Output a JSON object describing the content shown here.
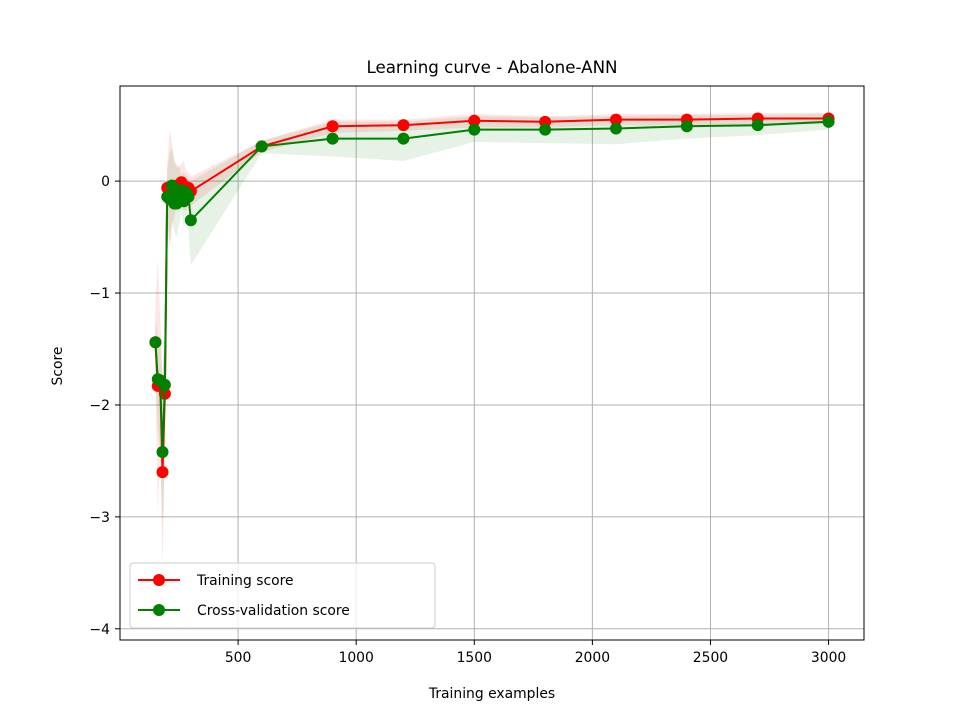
{
  "chart_data": {
    "type": "line",
    "title": "Learning curve - Abalone-ANN",
    "xlabel": "Training examples",
    "ylabel": "Score",
    "xlim": [
      0,
      3150
    ],
    "ylim": [
      -4.1,
      0.85
    ],
    "xticks": [
      500,
      1000,
      1500,
      2000,
      2500,
      3000
    ],
    "yticks": [
      -4,
      -3,
      -2,
      -1,
      0
    ],
    "ytick_labels": [
      "−4",
      "−3",
      "−2",
      "−1",
      "0"
    ],
    "grid": true,
    "legend_position": "lower-left",
    "x": [
      150,
      160,
      170,
      180,
      190,
      200,
      210,
      220,
      230,
      240,
      250,
      260,
      270,
      280,
      290,
      300,
      600,
      900,
      1200,
      1500,
      1800,
      2100,
      2400,
      2700,
      3000
    ],
    "series": [
      {
        "name": "Training score",
        "color": "#ff0000",
        "values": [
          -1.44,
          -1.83,
          -1.78,
          -2.6,
          -1.9,
          -0.06,
          -0.07,
          -0.04,
          -0.08,
          -0.04,
          -0.06,
          -0.01,
          -0.04,
          -0.08,
          -0.06,
          -0.09,
          0.31,
          0.49,
          0.5,
          0.54,
          0.53,
          0.55,
          0.55,
          0.56,
          0.56
        ],
        "band_upper": [
          -1.1,
          -0.7,
          -1.2,
          -1.75,
          -1.3,
          0.15,
          0.46,
          0.34,
          0.16,
          0.15,
          0.12,
          0.16,
          0.18,
          0.1,
          0.08,
          0.04,
          0.36,
          0.55,
          0.55,
          0.6,
          0.58,
          0.6,
          0.6,
          0.61,
          0.61
        ],
        "band_lower": [
          -1.78,
          -2.96,
          -2.36,
          -3.45,
          -2.5,
          -0.27,
          -0.6,
          -0.42,
          -0.32,
          -0.23,
          -0.24,
          -0.18,
          -0.26,
          -0.26,
          -0.2,
          -0.22,
          0.26,
          0.43,
          0.45,
          0.48,
          0.48,
          0.5,
          0.5,
          0.51,
          0.51
        ]
      },
      {
        "name": "Cross-validation score",
        "color": "#008000",
        "values": [
          -1.44,
          -1.77,
          -1.78,
          -2.42,
          -1.82,
          -0.14,
          -0.16,
          -0.04,
          -0.2,
          -0.2,
          -0.13,
          -0.08,
          -0.18,
          -0.1,
          -0.14,
          -0.35,
          0.31,
          0.38,
          0.38,
          0.46,
          0.46,
          0.47,
          0.49,
          0.5,
          0.53
        ],
        "band_upper": [
          -1.2,
          -1.4,
          -1.4,
          -1.8,
          -1.2,
          0.1,
          0.25,
          0.3,
          0.2,
          0.12,
          0.14,
          0.05,
          0.08,
          0.05,
          0.03,
          0.0,
          0.36,
          0.53,
          0.53,
          0.58,
          0.57,
          0.58,
          0.59,
          0.59,
          0.6
        ],
        "band_lower": [
          -1.7,
          -2.2,
          -2.4,
          -3.1,
          -2.5,
          -0.4,
          -0.55,
          -0.35,
          -0.45,
          -0.5,
          -0.4,
          -0.28,
          -0.42,
          -0.3,
          -0.45,
          -0.75,
          0.25,
          0.22,
          0.18,
          0.35,
          0.34,
          0.33,
          0.38,
          0.41,
          0.46
        ]
      }
    ]
  }
}
